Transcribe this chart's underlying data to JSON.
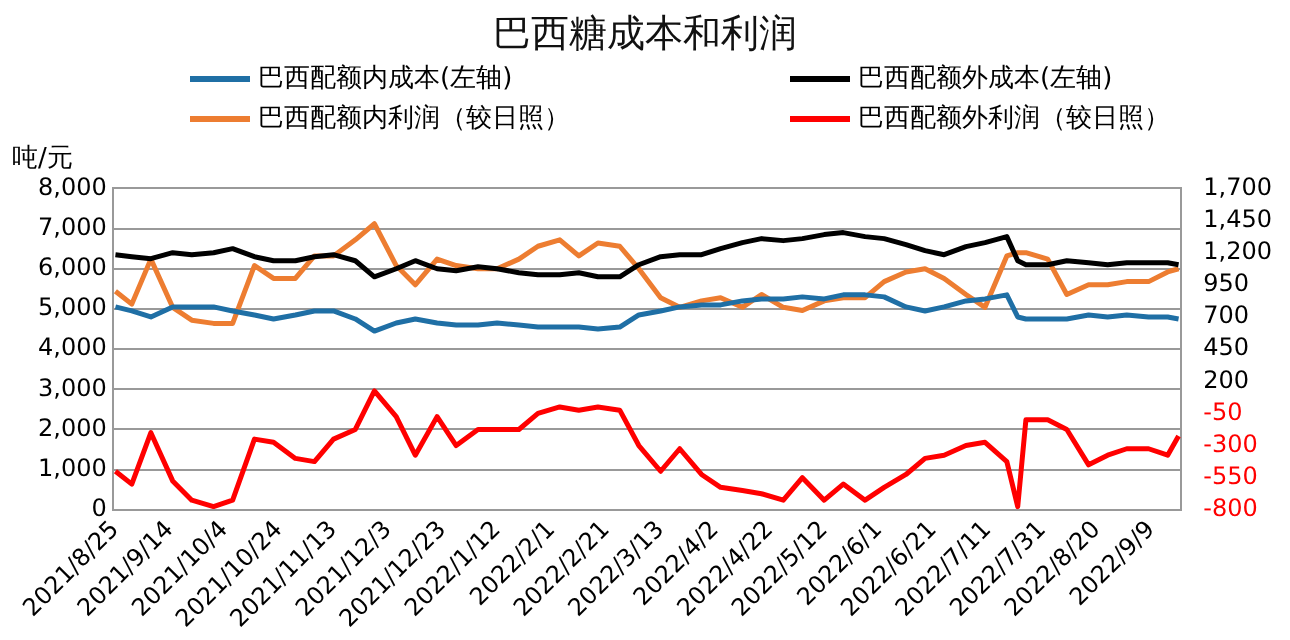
{
  "chart_data": {
    "type": "line",
    "title": "巴西糖成本和利润",
    "ylabel": "吨/元",
    "x": [
      "2021-08-25",
      "2021-08-31",
      "2021-09-07",
      "2021-09-15",
      "2021-09-22",
      "2021-09-30",
      "2021-10-07",
      "2021-10-15",
      "2021-10-22",
      "2021-10-30",
      "2021-11-06",
      "2021-11-13",
      "2021-11-21",
      "2021-11-28",
      "2021-12-06",
      "2021-12-13",
      "2021-12-21",
      "2021-12-28",
      "2022-01-05",
      "2022-01-12",
      "2022-01-20",
      "2022-01-27",
      "2022-02-04",
      "2022-02-11",
      "2022-02-18",
      "2022-02-26",
      "2022-03-05",
      "2022-03-13",
      "2022-03-20",
      "2022-03-28",
      "2022-04-04",
      "2022-04-12",
      "2022-04-19",
      "2022-04-27",
      "2022-05-04",
      "2022-05-12",
      "2022-05-19",
      "2022-05-27",
      "2022-06-03",
      "2022-06-11",
      "2022-06-18",
      "2022-06-25",
      "2022-07-03",
      "2022-07-10",
      "2022-07-18",
      "2022-07-22",
      "2022-07-25",
      "2022-08-02",
      "2022-08-09",
      "2022-08-17",
      "2022-08-24",
      "2022-08-31",
      "2022-09-08",
      "2022-09-15",
      "2022-09-19"
    ],
    "series": [
      {
        "name": "巴西配额内成本(左轴)",
        "color": "#1f6fa5",
        "values": [
          5050,
          4950,
          4800,
          5050,
          5050,
          5050,
          4950,
          4850,
          4750,
          4850,
          4950,
          4950,
          4750,
          4450,
          4650,
          4750,
          4650,
          4600,
          4600,
          4650,
          4600,
          4550,
          4550,
          4550,
          4500,
          4550,
          4850,
          4950,
          5050,
          5100,
          5100,
          5200,
          5250,
          5250,
          5300,
          5250,
          5350,
          5350,
          5300,
          5050,
          4950,
          5050,
          5200,
          5250,
          5350,
          4800,
          4750,
          4750,
          4750,
          4850,
          4800,
          4850,
          4800,
          4800,
          4750
        ]
      },
      {
        "name": "巴西配额外成本(左轴)",
        "color": "#000000",
        "values": [
          6350,
          6300,
          6250,
          6400,
          6350,
          6400,
          6500,
          6300,
          6200,
          6200,
          6300,
          6350,
          6200,
          5800,
          6000,
          6200,
          6000,
          5950,
          6050,
          6000,
          5900,
          5850,
          5850,
          5900,
          5800,
          5800,
          6100,
          6300,
          6350,
          6350,
          6500,
          6650,
          6750,
          6700,
          6750,
          6850,
          6900,
          6800,
          6750,
          6600,
          6450,
          6350,
          6550,
          6650,
          6800,
          6200,
          6100,
          6100,
          6200,
          6150,
          6100,
          6150,
          6150,
          6150,
          6100
        ]
      },
      {
        "name": "巴西配额内利润（较日照）",
        "color": "#ed7d31",
        "axis": "y2",
        "values": [
          900,
          800,
          1150,
          775,
          675,
          650,
          650,
          1100,
          1000,
          1000,
          1175,
          1175,
          1300,
          1425,
          1100,
          950,
          1150,
          1100,
          1075,
          1075,
          1150,
          1250,
          1300,
          1175,
          1275,
          1250,
          1075,
          850,
          775,
          825,
          850,
          775,
          875,
          775,
          750,
          825,
          850,
          850,
          975,
          1050,
          1075,
          1000,
          875,
          775,
          1175,
          1200,
          1200,
          1150,
          875,
          950,
          950,
          975,
          975,
          1050,
          1075
        ]
      },
      {
        "name": "巴西配额外利润（较日照）",
        "color": "#ff0000",
        "axis": "y2",
        "values": [
          -500,
          -600,
          -200,
          -575,
          -725,
          -775,
          -725,
          -250,
          -275,
          -400,
          -425,
          -250,
          -175,
          125,
          -75,
          -375,
          -75,
          -300,
          -175,
          -175,
          -175,
          -50,
          0,
          -25,
          0,
          -25,
          -300,
          -500,
          -325,
          -525,
          -625,
          -650,
          -675,
          -725,
          -550,
          -725,
          -600,
          -725,
          -625,
          -525,
          -400,
          -375,
          -300,
          -275,
          -425,
          -775,
          -100,
          -100,
          -175,
          -450,
          -375,
          -325,
          -325,
          -375,
          -225
        ]
      }
    ],
    "xlim": [
      "2021-08-24",
      "2022-09-20"
    ],
    "xticks": [
      {
        "value": "2021-08-25",
        "label": "2021/8/25"
      },
      {
        "value": "2021-09-14",
        "label": "2021/9/14"
      },
      {
        "value": "2021-10-04",
        "label": "2021/10/4"
      },
      {
        "value": "2021-10-24",
        "label": "2021/10/24"
      },
      {
        "value": "2021-11-13",
        "label": "2021/11/13"
      },
      {
        "value": "2021-12-03",
        "label": "2021/12/3"
      },
      {
        "value": "2021-12-23",
        "label": "2021/12/23"
      },
      {
        "value": "2022-01-12",
        "label": "2022/1/12"
      },
      {
        "value": "2022-02-01",
        "label": "2022/2/1"
      },
      {
        "value": "2022-02-21",
        "label": "2022/2/21"
      },
      {
        "value": "2022-03-13",
        "label": "2022/3/13"
      },
      {
        "value": "2022-04-02",
        "label": "2022/4/2"
      },
      {
        "value": "2022-04-22",
        "label": "2022/4/22"
      },
      {
        "value": "2022-05-12",
        "label": "2022/5/12"
      },
      {
        "value": "2022-06-01",
        "label": "2022/6/1"
      },
      {
        "value": "2022-06-21",
        "label": "2022/6/21"
      },
      {
        "value": "2022-07-11",
        "label": "2022/7/11"
      },
      {
        "value": "2022-07-31",
        "label": "2022/7/31"
      },
      {
        "value": "2022-08-20",
        "label": "2022/8/20"
      },
      {
        "value": "2022-09-09",
        "label": "2022/9/9"
      }
    ],
    "ylim": [
      0,
      8000
    ],
    "yticks": [
      0,
      {
        "value": 1000,
        "label": "1,000"
      },
      {
        "value": 2000,
        "label": "2,000"
      },
      {
        "value": 3000,
        "label": "3,000"
      },
      {
        "value": 4000,
        "label": "4,000"
      },
      {
        "value": 5000,
        "label": "5,000"
      },
      {
        "value": 6000,
        "label": "6,000"
      },
      {
        "value": 7000,
        "label": "7,000"
      },
      {
        "value": 8000,
        "label": "8,000"
      }
    ],
    "y2lim": [
      -800,
      1700
    ],
    "y2ticks": [
      -800,
      -550,
      -300,
      -50,
      200,
      450,
      700,
      950,
      {
        "value": 1200,
        "label": "1,200"
      },
      {
        "value": 1450,
        "label": "1,450"
      },
      {
        "value": 1700,
        "label": "1,700"
      }
    ],
    "grid": "y",
    "legend": "top",
    "marker": "none",
    "line_style": "solid"
  }
}
